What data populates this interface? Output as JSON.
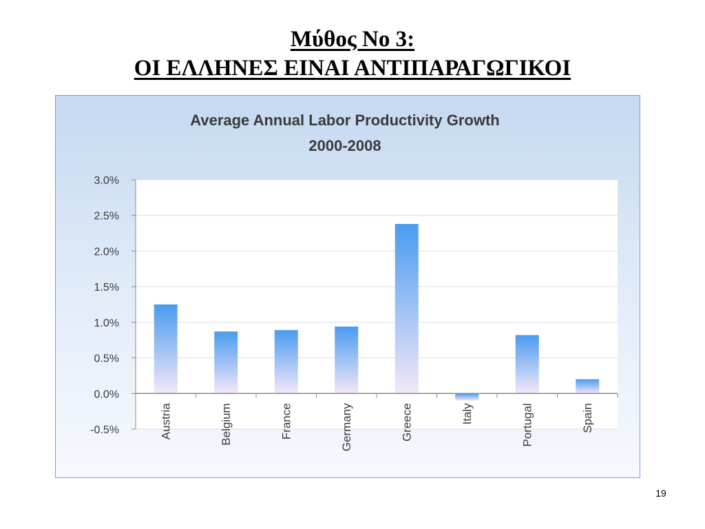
{
  "slide": {
    "title_line1": "Μύθος Νο 3:",
    "title_line2": "ΟΙ ΕΛΛΗΝΕΣ ΕΙΝΑΙ ΑΝΤΙΠΑΡΑΓΩΓΙΚΟΙ",
    "page_number": "19"
  },
  "chart_data": {
    "type": "bar",
    "title": "Average Annual Labor Productivity Growth",
    "subtitle": "2000-2008",
    "categories": [
      "Austria",
      "Belgium",
      "France",
      "Germany",
      "Greece",
      "Italy",
      "Portugal",
      "Spain"
    ],
    "values": [
      1.25,
      0.87,
      0.89,
      0.94,
      2.38,
      -0.1,
      0.82,
      0.2
    ],
    "ylim": [
      -0.5,
      3.0
    ],
    "y_ticks": [
      "3.0%",
      "2.5%",
      "2.0%",
      "1.5%",
      "1.0%",
      "0.5%",
      "0.0%",
      "-0.5%"
    ],
    "y_tick_values": [
      3.0,
      2.5,
      2.0,
      1.5,
      1.0,
      0.5,
      0.0,
      -0.5
    ],
    "grid": true,
    "bar_color_top": "#4a9bf0",
    "bar_color_bottom": "#f3e8f8",
    "frame_border": "#7d9ccd"
  }
}
